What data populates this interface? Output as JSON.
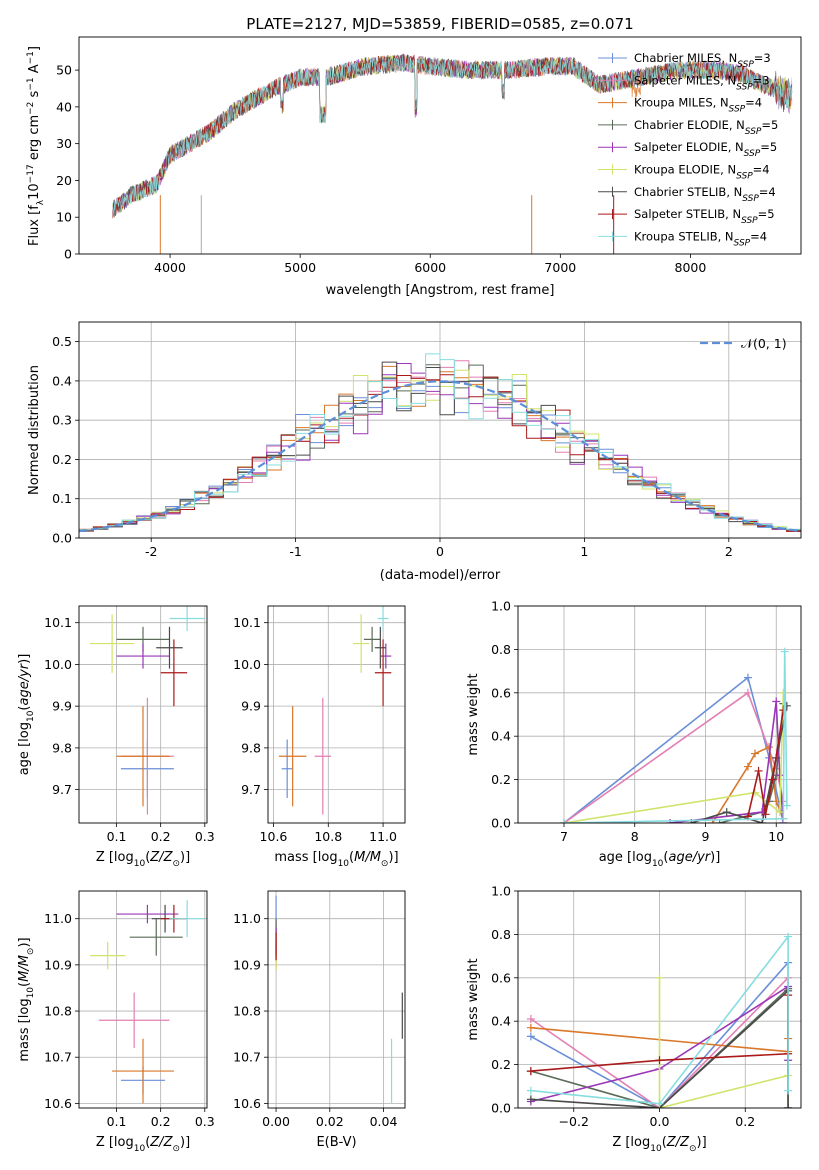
{
  "title": "PLATE=2127, MJD=53859, FIBERID=0585, z=0.071",
  "palette": [
    "#6a8fd8",
    "#e37fb3",
    "#d9772a",
    "#5a6b57",
    "#9b36b8",
    "#cfe46a",
    "#4a4a4a",
    "#aa1a1a",
    "#86dde0"
  ],
  "legend": [
    "Chabrier MILES, N_SSP=3",
    "Salpeter MILES, N_SSP=3",
    "Kroupa MILES, N_SSP=4",
    "Chabrier ELODIE, N_SSP=5",
    "Salpeter ELODIE, N_SSP=5",
    "Kroupa ELODIE, N_SSP=4",
    "Chabrier STELIB, N_SSP=4",
    "Salpeter STELIB, N_SSP=5",
    "Kroupa STELIB, N_SSP=4"
  ],
  "chart_data": [
    {
      "id": "spectrum",
      "type": "line",
      "xlabel": "wavelength [Angstrom, rest frame]",
      "ylabel": "Flux [f_λ10^-17 erg cm^-2 s^-1 A^-1]",
      "xlim": [
        3300,
        8850
      ],
      "ylim": [
        0,
        59
      ],
      "xticks": [
        4000,
        5000,
        6000,
        7000,
        8000
      ],
      "yticks": [
        0,
        10,
        20,
        30,
        40,
        50
      ],
      "continuum": {
        "x": [
          3560,
          3700,
          3900,
          4000,
          4100,
          4300,
          4500,
          4800,
          5000,
          5200,
          5500,
          5800,
          6000,
          6300,
          6600,
          6900,
          7100,
          7300,
          7600,
          7900,
          8200,
          8400,
          8500,
          8700,
          8780
        ],
        "y": [
          12,
          16,
          19,
          27,
          29,
          33,
          39,
          45,
          48,
          48,
          51,
          52,
          51,
          50,
          50,
          51,
          51,
          46,
          48,
          50,
          50,
          49,
          47,
          44,
          43
        ]
      },
      "dropouts": [
        3925,
        4240,
        6780,
        7410
      ]
    },
    {
      "id": "residual-hist",
      "type": "bar",
      "xlabel": "(data-model)/error",
      "ylabel": "Normed distribution",
      "xlim": [
        -2.5,
        2.5
      ],
      "ylim": [
        0,
        0.55
      ],
      "xticks": [
        -2,
        -1,
        0,
        1,
        2
      ],
      "yticks": [
        0.0,
        0.1,
        0.2,
        0.3,
        0.4,
        0.5
      ],
      "legend": "𝒩(0, 1)",
      "bin_width": 0.1
    },
    {
      "id": "age-vs-z",
      "type": "scatter",
      "xlabel": "Z [log10(Z/Z⊙)]",
      "ylabel": "age  [log10(age/yr)]",
      "xlim": [
        0.015,
        0.305
      ],
      "ylim": [
        9.62,
        10.14
      ],
      "xticks": [
        0.1,
        0.2,
        0.3
      ],
      "yticks": [
        9.7,
        9.8,
        9.9,
        10.0,
        10.1
      ],
      "points": [
        {
          "x": 0.17,
          "y": 9.75,
          "xerr": 0.06,
          "yerr": 0.07
        },
        {
          "x": 0.17,
          "y": 9.78,
          "xerr": 0.06,
          "yerr": 0.14
        },
        {
          "x": 0.16,
          "y": 9.78,
          "xerr": 0.06,
          "yerr": 0.12
        },
        {
          "x": 0.16,
          "y": 10.06,
          "xerr": 0.06,
          "yerr": 0.03
        },
        {
          "x": 0.16,
          "y": 10.02,
          "xerr": 0.06,
          "yerr": 0.03
        },
        {
          "x": 0.09,
          "y": 10.05,
          "xerr": 0.05,
          "yerr": 0.07
        },
        {
          "x": 0.22,
          "y": 10.04,
          "xerr": 0.03,
          "yerr": 0.05
        },
        {
          "x": 0.23,
          "y": 9.98,
          "xerr": 0.03,
          "yerr": 0.08
        },
        {
          "x": 0.26,
          "y": 10.11,
          "xerr": 0.04,
          "yerr": 0.03
        }
      ]
    },
    {
      "id": "age-vs-mass",
      "type": "scatter",
      "xlabel": "mass [log10(M/M⊙)]",
      "ylabel": "",
      "xlim": [
        10.58,
        11.08
      ],
      "ylim": [
        9.62,
        10.14
      ],
      "xticks": [
        10.6,
        10.8,
        11.0
      ],
      "yticks": [
        9.7,
        9.8,
        9.9,
        10.0,
        10.1
      ],
      "points": [
        {
          "x": 10.65,
          "y": 9.75,
          "xerr": 0.02,
          "yerr": 0.07
        },
        {
          "x": 10.78,
          "y": 9.78,
          "xerr": 0.03,
          "yerr": 0.14
        },
        {
          "x": 10.67,
          "y": 9.78,
          "xerr": 0.05,
          "yerr": 0.12
        },
        {
          "x": 10.96,
          "y": 10.06,
          "xerr": 0.03,
          "yerr": 0.03
        },
        {
          "x": 11.01,
          "y": 10.02,
          "xerr": 0.02,
          "yerr": 0.03
        },
        {
          "x": 10.92,
          "y": 10.05,
          "xerr": 0.03,
          "yerr": 0.07
        },
        {
          "x": 10.99,
          "y": 10.04,
          "xerr": 0.02,
          "yerr": 0.05
        },
        {
          "x": 11.0,
          "y": 9.98,
          "xerr": 0.03,
          "yerr": 0.08
        },
        {
          "x": 11.0,
          "y": 10.11,
          "xerr": 0.02,
          "yerr": 0.03
        }
      ]
    },
    {
      "id": "mass-weight-vs-age",
      "type": "line",
      "xlabel": "age  [log10(age/yr)]",
      "ylabel": "mass weight",
      "xlim": [
        6.35,
        10.35
      ],
      "ylim": [
        0,
        1
      ],
      "xticks": [
        7,
        8,
        9,
        10
      ],
      "yticks": [
        0.0,
        0.2,
        0.4,
        0.6,
        0.8,
        1.0
      ],
      "series": [
        {
          "x": [
            7.0,
            9.6,
            9.9,
            10.1
          ],
          "y": [
            0.0,
            0.67,
            0.3,
            0.0
          ]
        },
        {
          "x": [
            7.0,
            9.6,
            10.0,
            10.1
          ],
          "y": [
            0.0,
            0.6,
            0.25,
            0.1
          ]
        },
        {
          "x": [
            9.1,
            9.6,
            9.7,
            9.9,
            10.0,
            10.1
          ],
          "y": [
            0.0,
            0.26,
            0.32,
            0.35,
            0.1,
            0.02
          ]
        },
        {
          "x": [
            9.2,
            9.8,
            9.9,
            10.0,
            10.1
          ],
          "y": [
            0.0,
            0.05,
            0.1,
            0.22,
            0.55
          ]
        },
        {
          "x": [
            8.5,
            9.8,
            10.0,
            10.05,
            10.1
          ],
          "y": [
            0.0,
            0.05,
            0.56,
            0.22,
            0.0
          ]
        },
        {
          "x": [
            7.0,
            9.7,
            10.05,
            10.1
          ],
          "y": [
            0.0,
            0.14,
            0.05,
            0.6
          ]
        },
        {
          "x": [
            8.8,
            9.3,
            9.8,
            10.0,
            10.15
          ],
          "y": [
            0.0,
            0.05,
            0.0,
            0.3,
            0.54
          ]
        },
        {
          "x": [
            9.6,
            9.75,
            9.85,
            9.95,
            10.1
          ],
          "y": [
            0.03,
            0.24,
            0.04,
            0.2,
            0.52
          ]
        },
        {
          "x": [
            7.0,
            10.1,
            10.12,
            10.15
          ],
          "y": [
            0.0,
            0.02,
            0.79,
            0.08
          ]
        }
      ]
    },
    {
      "id": "mass-vs-z",
      "type": "scatter",
      "xlabel": "Z [log10(Z/Z⊙)]",
      "ylabel": "mass [log10(M/M⊙)]",
      "xlim": [
        0.015,
        0.305
      ],
      "ylim": [
        10.59,
        11.06
      ],
      "xticks": [
        0.1,
        0.2,
        0.3
      ],
      "yticks": [
        10.6,
        10.7,
        10.8,
        10.9,
        11.0
      ],
      "points": [
        {
          "x": 0.16,
          "y": 10.65,
          "xerr": 0.05,
          "yerr": 0.03
        },
        {
          "x": 0.14,
          "y": 10.78,
          "xerr": 0.08,
          "yerr": 0.06
        },
        {
          "x": 0.16,
          "y": 10.67,
          "xerr": 0.07,
          "yerr": 0.07
        },
        {
          "x": 0.19,
          "y": 10.96,
          "xerr": 0.06,
          "yerr": 0.04
        },
        {
          "x": 0.17,
          "y": 11.01,
          "xerr": 0.07,
          "yerr": 0.02
        },
        {
          "x": 0.08,
          "y": 10.92,
          "xerr": 0.04,
          "yerr": 0.03
        },
        {
          "x": 0.21,
          "y": 11.0,
          "xerr": 0.03,
          "yerr": 0.03
        },
        {
          "x": 0.23,
          "y": 11.0,
          "xerr": 0.03,
          "yerr": 0.03
        },
        {
          "x": 0.26,
          "y": 11.0,
          "xerr": 0.04,
          "yerr": 0.04
        }
      ]
    },
    {
      "id": "mass-vs-ebv",
      "type": "scatter",
      "xlabel": "E(B-V)",
      "ylabel": "",
      "xlim": [
        -0.003,
        0.048
      ],
      "ylim": [
        10.59,
        11.06
      ],
      "xticks": [
        0.0,
        0.02,
        0.04
      ],
      "yticks": [
        10.6,
        10.7,
        10.8,
        10.9,
        11.0
      ],
      "points": [
        {
          "x": 0.0,
          "y": 10.98,
          "xerr": 0.0,
          "yerr": 0.07
        },
        {
          "x": 0.0,
          "y": 10.95,
          "xerr": 0.0,
          "yerr": 0.04
        },
        {
          "x": 0.0,
          "y": 10.92,
          "xerr": 0.0,
          "yerr": 0.03
        },
        {
          "x": 0.0,
          "y": 10.96,
          "xerr": 0.0,
          "yerr": 0.04
        },
        {
          "x": 0.0,
          "y": 10.95,
          "xerr": 0.0,
          "yerr": 0.03
        },
        {
          "x": 0.0,
          "y": 10.93,
          "xerr": 0.0,
          "yerr": 0.04
        },
        {
          "x": 0.047,
          "y": 10.79,
          "xerr": 0.0,
          "yerr": 0.05
        },
        {
          "x": 0.0,
          "y": 10.94,
          "xerr": 0.0,
          "yerr": 0.03
        },
        {
          "x": 0.043,
          "y": 10.67,
          "xerr": 0.0,
          "yerr": 0.07
        }
      ]
    },
    {
      "id": "mass-weight-vs-z",
      "type": "line",
      "xlabel": "Z [log10(Z/Z⊙)]",
      "ylabel": "mass weight",
      "xlim": [
        -0.33,
        0.33
      ],
      "ylim": [
        0,
        1
      ],
      "xticks": [
        -0.2,
        0.0,
        0.2
      ],
      "yticks": [
        0.0,
        0.2,
        0.4,
        0.6,
        0.8,
        1.0
      ],
      "series": [
        {
          "x": [
            -0.3,
            0.0,
            0.3,
            0.3
          ],
          "y": [
            0.33,
            0.0,
            0.67,
            0.0
          ]
        },
        {
          "x": [
            -0.3,
            0.0,
            0.3,
            0.3
          ],
          "y": [
            0.41,
            0.0,
            0.6,
            0.0
          ]
        },
        {
          "x": [
            -0.3,
            0.3,
            0.3
          ],
          "y": [
            0.37,
            0.26,
            0.32
          ]
        },
        {
          "x": [
            -0.3,
            0.0,
            0.3,
            0.3
          ],
          "y": [
            0.17,
            0.0,
            0.55,
            0.0
          ]
        },
        {
          "x": [
            -0.3,
            0.0,
            0.3,
            0.3
          ],
          "y": [
            0.03,
            0.18,
            0.56,
            0.22
          ]
        },
        {
          "x": [
            0.0,
            0.0,
            0.3,
            0.3
          ],
          "y": [
            0.6,
            0.0,
            0.15,
            0.0
          ]
        },
        {
          "x": [
            -0.3,
            0.0,
            0.3,
            0.3
          ],
          "y": [
            0.04,
            0.0,
            0.54,
            0.0
          ]
        },
        {
          "x": [
            -0.3,
            0.0,
            0.3,
            0.3
          ],
          "y": [
            0.17,
            0.22,
            0.25,
            0.52
          ]
        },
        {
          "x": [
            -0.3,
            0.0,
            0.3,
            0.3
          ],
          "y": [
            0.08,
            0.02,
            0.79,
            0.08
          ]
        }
      ]
    }
  ]
}
